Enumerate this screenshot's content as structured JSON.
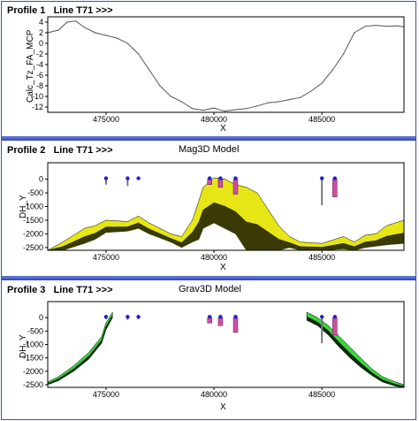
{
  "panels": [
    {
      "profile_label": "Profile 1",
      "line_label": "Line T71 >>>",
      "model_label": "",
      "ylabel": "Calc_Tz_FA_MCP",
      "xlabel": "X"
    },
    {
      "profile_label": "Profile 2",
      "line_label": "Line T71 >>>",
      "model_label": "Mag3D Model",
      "ylabel": "DH_Y",
      "xlabel": "X"
    },
    {
      "profile_label": "Profile 3",
      "line_label": "Line T71 >>>",
      "model_label": "Grav3D Model",
      "ylabel": "DH_Y",
      "xlabel": "X"
    }
  ],
  "chart_data": [
    {
      "type": "line",
      "xlabel": "X",
      "ylabel": "Calc_Tz_FA_MCP",
      "xlim": [
        472300,
        488800
      ],
      "ylim": [
        -13,
        5
      ],
      "x_ticks": [
        475000,
        480000,
        485000
      ],
      "y_ticks": [
        4,
        2,
        0,
        -2,
        -4,
        -6,
        -8,
        -10,
        -12
      ],
      "series": [
        {
          "color": "#555555",
          "x": [
            472300,
            472800,
            473200,
            473600,
            474000,
            474500,
            475000,
            475500,
            476000,
            476500,
            477000,
            477500,
            478000,
            478500,
            479000,
            479500,
            480000,
            480500,
            481000,
            481500,
            482000,
            482500,
            483000,
            483500,
            484000,
            484500,
            485000,
            485500,
            486000,
            486500,
            487000,
            487500,
            488000,
            488500,
            488800
          ],
          "y": [
            2,
            2.5,
            4,
            4.2,
            3,
            2,
            1.5,
            1,
            0,
            -2,
            -5,
            -8,
            -10,
            -11,
            -12.3,
            -12.6,
            -12.2,
            -12.8,
            -12.5,
            -12.3,
            -11.8,
            -11.2,
            -11,
            -10.6,
            -10.2,
            -9,
            -7.5,
            -5,
            -2,
            2,
            3.2,
            3.4,
            3.2,
            3.3,
            3.1
          ]
        }
      ]
    },
    {
      "type": "area",
      "title": "Mag3D Model",
      "xlabel": "X",
      "ylabel": "DH_Y",
      "xlim": [
        472300,
        488800
      ],
      "ylim": [
        -2600,
        600
      ],
      "x_ticks": [
        475000,
        480000,
        485000
      ],
      "y_ticks": [
        0,
        -500,
        -1000,
        -1500,
        -2000,
        -2500
      ],
      "colors": {
        "surface": "#e6e617",
        "shadow": "#3a3a05",
        "collar": "#2222cc",
        "drill_magenta": "#cc4fa0",
        "drill_gray": "#777777"
      },
      "series": [
        {
          "name": "",
          "x": [
            472300,
            473000,
            474000,
            474500,
            475000,
            476000,
            476500,
            477000,
            478000,
            478500,
            479000,
            479300,
            479500,
            480000,
            480500,
            481000,
            481500,
            482000,
            482500,
            483000,
            483500,
            484000,
            485000,
            486000,
            486500,
            487000,
            487500,
            488000,
            488800
          ],
          "top": [
            -2600,
            -2300,
            -1800,
            -1700,
            -1500,
            -1550,
            -1350,
            -1600,
            -2000,
            -2100,
            -1500,
            -800,
            -300,
            50,
            0,
            -200,
            -300,
            -500,
            -1100,
            -1700,
            -2100,
            -2300,
            -2350,
            -2100,
            -2300,
            -2050,
            -2000,
            -1700,
            -1500
          ],
          "bottom": [
            -2600,
            -2600,
            -2350,
            -2200,
            -1950,
            -1900,
            -1800,
            -2000,
            -2300,
            -2500,
            -2300,
            -2200,
            -1800,
            -1600,
            -1800,
            -2000,
            -2600,
            -2600,
            -2600,
            -2600,
            -2500,
            -2600,
            -2600,
            -2550,
            -2600,
            -2500,
            -2450,
            -2400,
            -2350
          ]
        }
      ],
      "drillholes": [
        {
          "x": 475000,
          "depth": 200,
          "color": "gray"
        },
        {
          "x": 476000,
          "depth": 250,
          "color": "gray"
        },
        {
          "x": 476500,
          "depth": 30,
          "color": "gray"
        },
        {
          "x": 479800,
          "depth": 200,
          "color": "magenta"
        },
        {
          "x": 480300,
          "depth": 300,
          "color": "magenta"
        },
        {
          "x": 481000,
          "depth": 550,
          "color": "magenta"
        },
        {
          "x": 485000,
          "depth": 950,
          "color": "gray"
        },
        {
          "x": 485600,
          "depth": 650,
          "color": "magenta"
        }
      ]
    },
    {
      "type": "area",
      "title": "Grav3D Model",
      "xlabel": "X",
      "ylabel": "DH_Y",
      "xlim": [
        472300,
        488800
      ],
      "ylim": [
        -2600,
        600
      ],
      "x_ticks": [
        475000,
        480000,
        485000
      ],
      "y_ticks": [
        0,
        -500,
        -1000,
        -1500,
        -2000,
        -2500
      ],
      "colors": {
        "surface": "#3cd63c",
        "shadow": "#0f2a0f",
        "collar": "#2222cc",
        "drill_magenta": "#cc4fa0",
        "drill_gray": "#777777"
      },
      "series": [
        {
          "name": "",
          "x": [
            472300,
            472800,
            473500,
            474200,
            474800,
            475000,
            475300
          ],
          "top": [
            -2400,
            -2200,
            -1800,
            -1300,
            -700,
            -200,
            200
          ],
          "bottom": [
            -2500,
            -2350,
            -2000,
            -1550,
            -950,
            -450,
            0
          ]
        },
        {
          "name": "",
          "x": [
            484300,
            484800,
            485300,
            485800,
            486300,
            486800,
            487300,
            487800,
            488400,
            488800
          ],
          "top": [
            200,
            0,
            -300,
            -700,
            -1100,
            -1500,
            -1900,
            -2200,
            -2400,
            -2500
          ],
          "bottom": [
            -100,
            -300,
            -650,
            -1100,
            -1500,
            -1850,
            -2150,
            -2400,
            -2550,
            -2600
          ]
        }
      ],
      "drillholes": [
        {
          "x": 475000,
          "depth": 60,
          "color": "gray"
        },
        {
          "x": 476000,
          "depth": 80,
          "color": "gray"
        },
        {
          "x": 476500,
          "depth": 60,
          "color": "gray"
        },
        {
          "x": 479800,
          "depth": 200,
          "color": "magenta"
        },
        {
          "x": 480300,
          "depth": 300,
          "color": "magenta"
        },
        {
          "x": 481000,
          "depth": 550,
          "color": "magenta"
        },
        {
          "x": 485000,
          "depth": 950,
          "color": "gray"
        },
        {
          "x": 485600,
          "depth": 650,
          "color": "magenta"
        }
      ]
    }
  ]
}
